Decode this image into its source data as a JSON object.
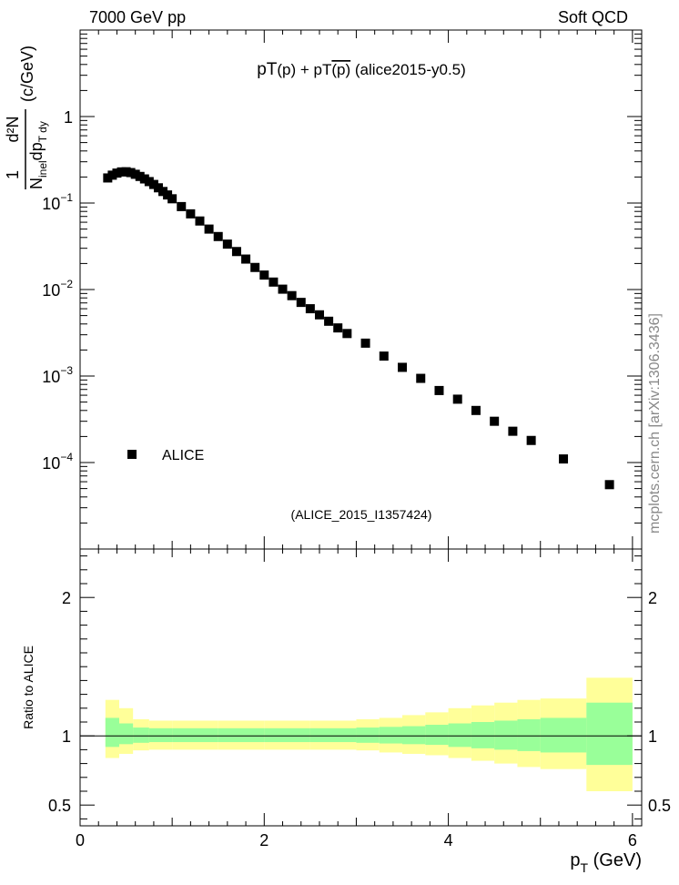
{
  "header": {
    "left": "7000 GeV pp",
    "right": "Soft QCD"
  },
  "watermark": "mcplots.cern.ch [arXiv:1306.3436]",
  "chart_data": [
    {
      "type": "scatter",
      "panel": "main",
      "title_main": "pT",
      "title_p": "(p)",
      "title_plus": " + pT",
      "title_pbar": "(p)",
      "title_rest": " (alice2015-y0.5)",
      "ylabel": "1/N_inel d^2N/dp_T dy (c/GeV)",
      "ylabel_parts": {
        "one": "1",
        "d2N": "d²N",
        "N": "N",
        "inel": "inel",
        "dp": "dp",
        "Tdy": "T dy",
        "unit": "(c/GeV)"
      },
      "yscale": "log",
      "ylim": [
        1e-05,
        10
      ],
      "xlim": [
        0,
        6.1
      ],
      "yticks": [
        "1",
        "10",
        "10",
        "10",
        "10"
      ],
      "ytick_exps": [
        "",
        "−1",
        "−2",
        "−3",
        "−4"
      ],
      "ytick_values": [
        1,
        0.1,
        0.01,
        0.001,
        0.0001
      ],
      "legend": {
        "label": "ALICE",
        "position": "left"
      },
      "analysis_label": "(ALICE_2015_I1357424)",
      "series": [
        {
          "name": "ALICE",
          "x": [
            0.3,
            0.35,
            0.4,
            0.45,
            0.5,
            0.55,
            0.6,
            0.65,
            0.7,
            0.75,
            0.8,
            0.85,
            0.9,
            0.95,
            1.0,
            1.1,
            1.2,
            1.3,
            1.4,
            1.5,
            1.6,
            1.7,
            1.8,
            1.9,
            2.0,
            2.1,
            2.2,
            2.3,
            2.4,
            2.5,
            2.6,
            2.7,
            2.8,
            2.9,
            3.1,
            3.3,
            3.5,
            3.7,
            3.9,
            4.1,
            4.3,
            4.5,
            4.7,
            4.9,
            5.25,
            5.75
          ],
          "y": [
            0.195,
            0.21,
            0.222,
            0.229,
            0.23,
            0.225,
            0.215,
            0.203,
            0.19,
            0.177,
            0.164,
            0.15,
            0.136,
            0.124,
            0.112,
            0.091,
            0.075,
            0.062,
            0.05,
            0.041,
            0.0335,
            0.0275,
            0.0225,
            0.018,
            0.0147,
            0.0122,
            0.0101,
            0.0085,
            0.0071,
            0.006,
            0.0051,
            0.0043,
            0.0036,
            0.0031,
            0.0024,
            0.0017,
            0.00126,
            0.00094,
            0.00068,
            0.00054,
            0.0004,
            0.0003,
            0.00023,
            0.00018,
            0.00011,
            5.55e-05
          ]
        }
      ]
    },
    {
      "type": "area",
      "panel": "ratio",
      "ylabel": "Ratio to ALICE",
      "xlabel": "p_T (GeV)",
      "xlabel_parts": {
        "p": "p",
        "T": "T",
        "unit": "(GeV)"
      },
      "xlim": [
        0,
        6.1
      ],
      "ylim": [
        0.35,
        2.35
      ],
      "xticks": [
        "0",
        "2",
        "4",
        "6"
      ],
      "xtick_values": [
        0,
        2,
        4,
        6
      ],
      "yticks": [
        "2",
        "1",
        "0.5"
      ],
      "ytick_values": [
        2,
        1,
        0.5
      ],
      "reference_line": 1,
      "bands": {
        "bin_edges": [
          0.275,
          0.425,
          0.575,
          0.75,
          1.0,
          1.5,
          2.0,
          2.5,
          3.0,
          3.25,
          3.5,
          3.75,
          4.0,
          4.25,
          4.5,
          4.75,
          5.0,
          5.5,
          6.0
        ],
        "stat_syst_lo": [
          0.84,
          0.87,
          0.895,
          0.9,
          0.9,
          0.9,
          0.9,
          0.9,
          0.895,
          0.88,
          0.87,
          0.86,
          0.84,
          0.82,
          0.8,
          0.775,
          0.76,
          0.6
        ],
        "stat_syst_hi": [
          1.26,
          1.2,
          1.12,
          1.11,
          1.11,
          1.11,
          1.11,
          1.11,
          1.12,
          1.13,
          1.15,
          1.17,
          1.2,
          1.22,
          1.24,
          1.26,
          1.27,
          1.42
        ],
        "stat_lo": [
          0.92,
          0.94,
          0.95,
          0.955,
          0.955,
          0.955,
          0.955,
          0.955,
          0.95,
          0.945,
          0.94,
          0.935,
          0.92,
          0.91,
          0.9,
          0.89,
          0.88,
          0.79
        ],
        "stat_hi": [
          1.13,
          1.09,
          1.06,
          1.055,
          1.055,
          1.055,
          1.055,
          1.055,
          1.06,
          1.065,
          1.07,
          1.08,
          1.09,
          1.1,
          1.11,
          1.12,
          1.13,
          1.24
        ]
      },
      "colors": {
        "outer_band": "#ffff99",
        "inner_band": "#99ff99",
        "marker": "#000000"
      }
    }
  ]
}
